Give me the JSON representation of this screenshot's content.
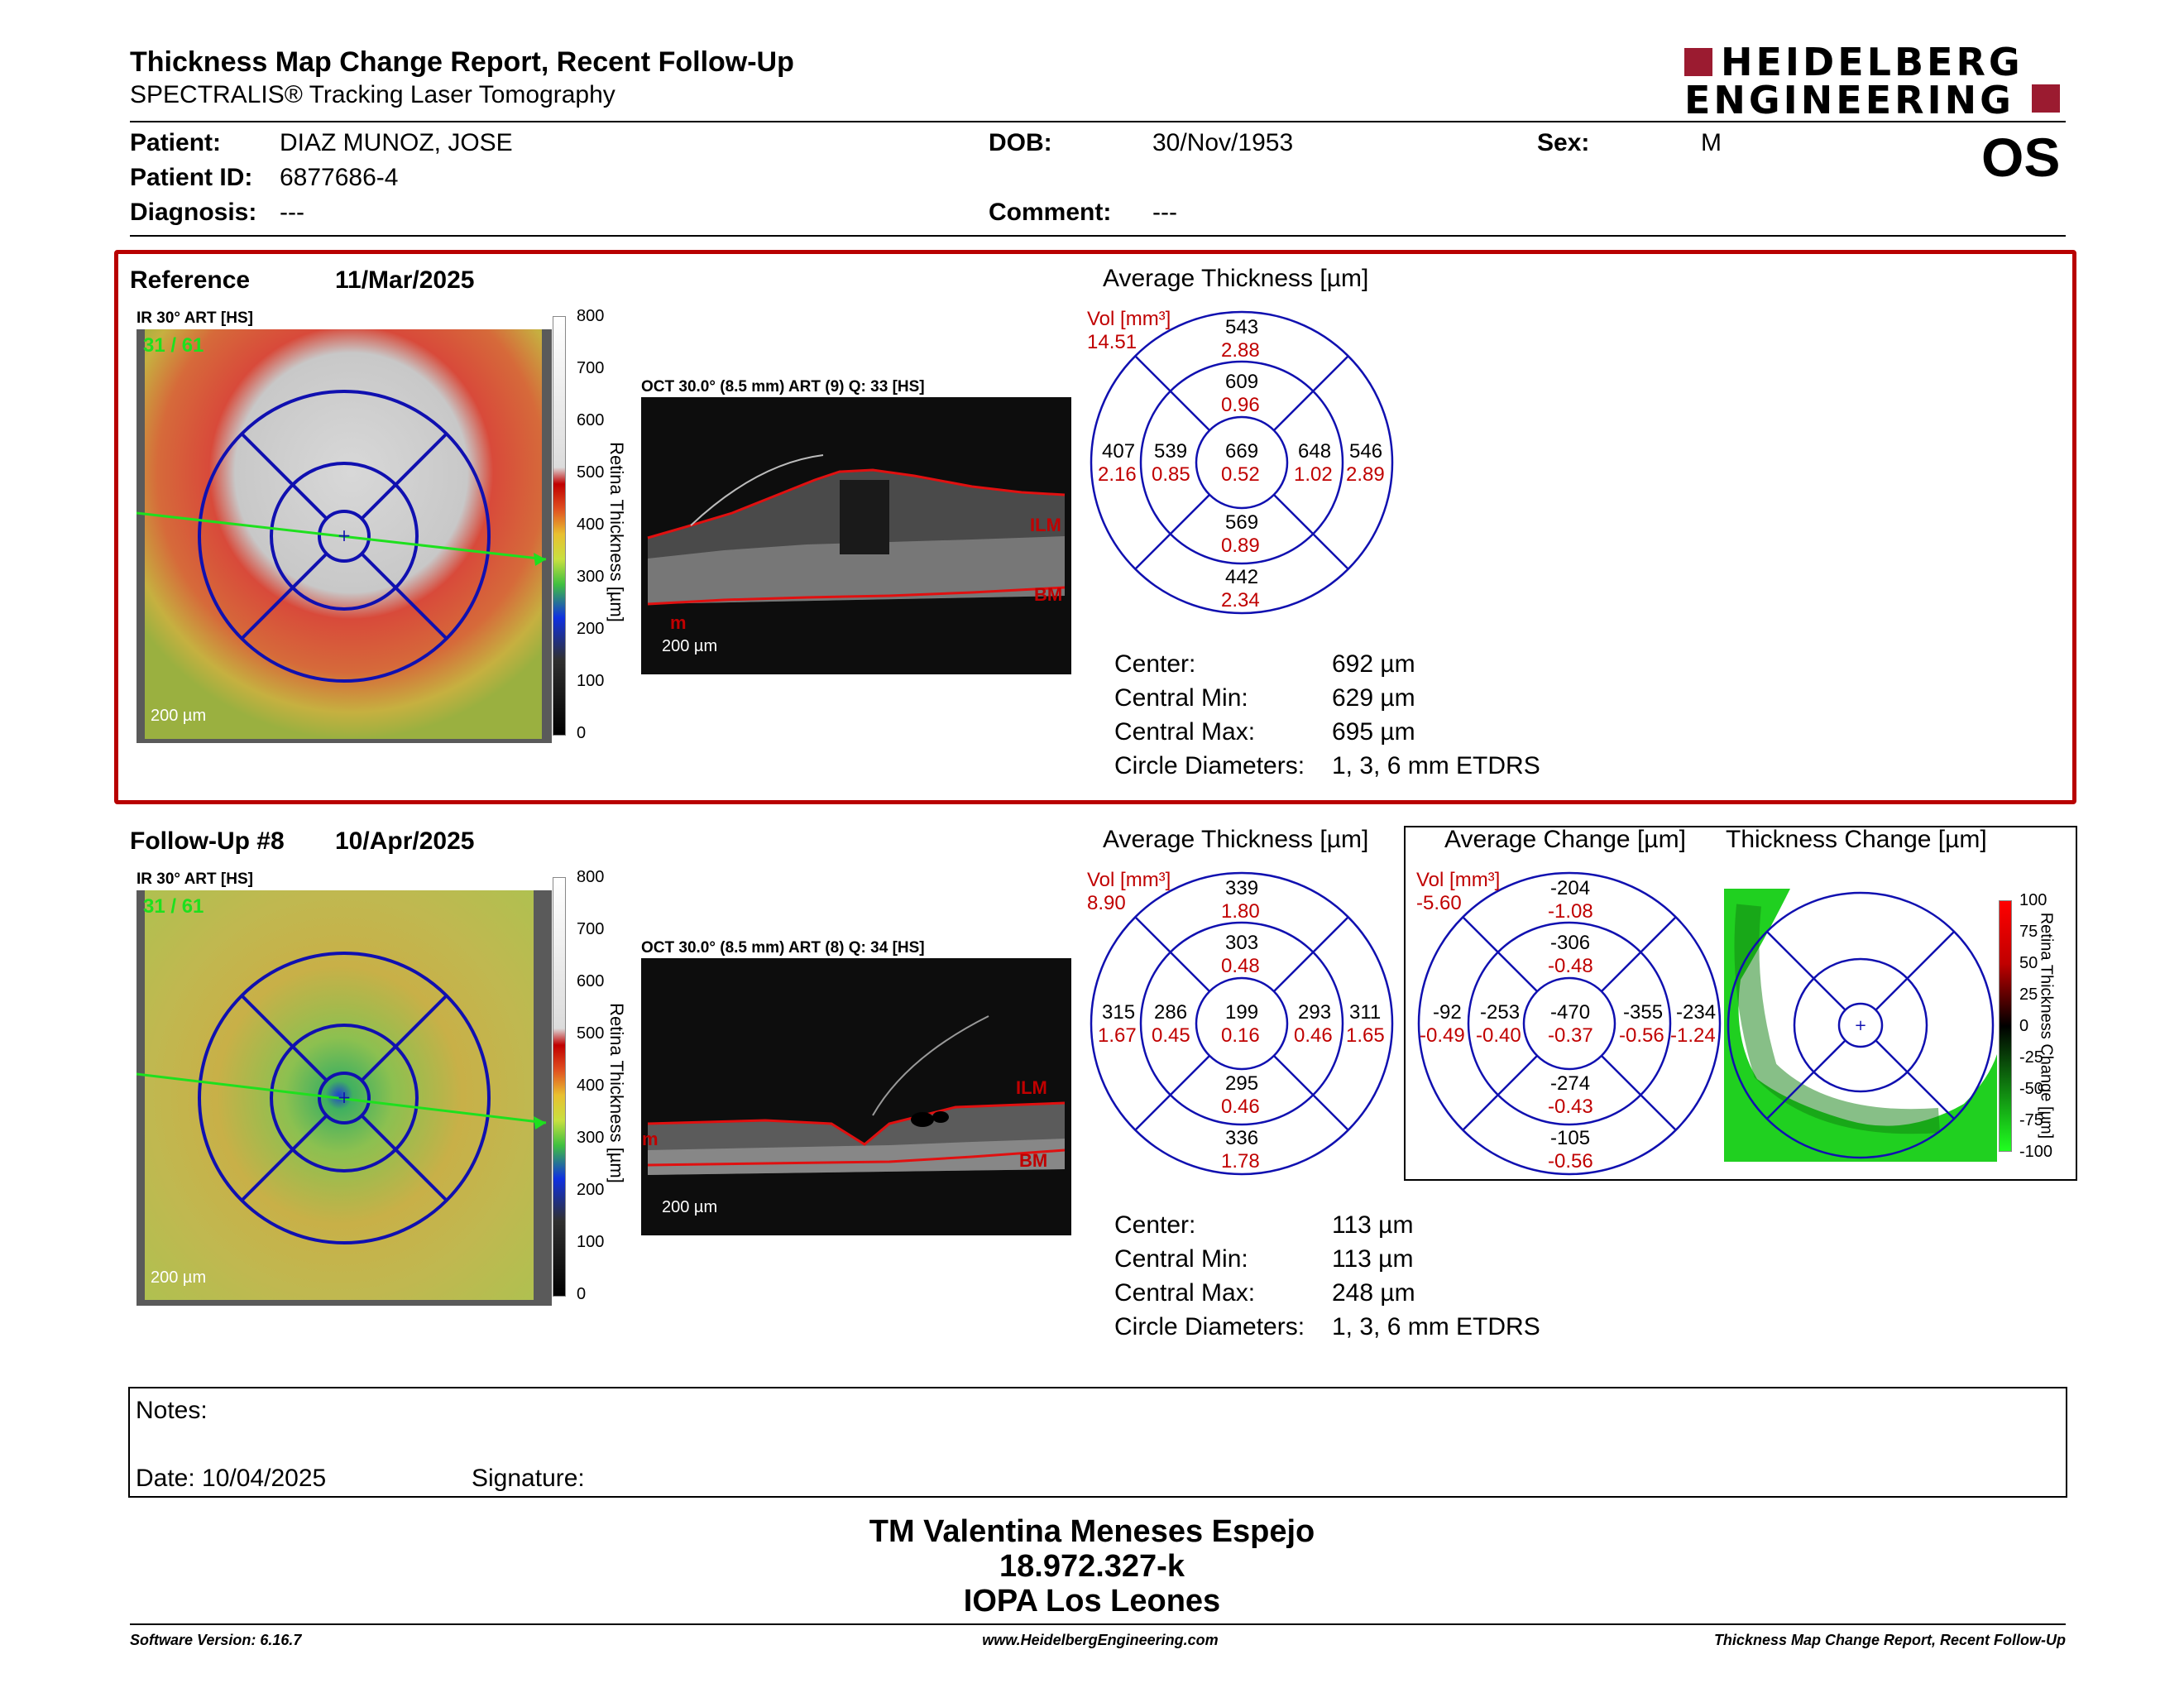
{
  "header": {
    "title": "Thickness Map Change Report, Recent Follow-Up",
    "subtitle": "SPECTRALIS® Tracking Laser Tomography",
    "logo_line1": "HEIDELBERG",
    "logo_line2": "ENGINEERING",
    "eye": "OS"
  },
  "patient": {
    "patient_label": "Patient:",
    "patient": "DIAZ MUNOZ, JOSE",
    "id_label": "Patient ID:",
    "id": "6877686-4",
    "diag_label": "Diagnosis:",
    "diag": "---",
    "dob_label": "DOB:",
    "dob": "30/Nov/1953",
    "comment_label": "Comment:",
    "comment": "---",
    "sex_label": "Sex:",
    "sex": "M"
  },
  "reference": {
    "label": "Reference",
    "date": "11/Mar/2025",
    "ir_label": "IR 30° ART [HS]",
    "ir_counter": "31 / 61",
    "scale": "200 µm",
    "oct_label": "OCT 30.0° (8.5 mm) ART (9) Q: 33 [HS]",
    "oct_scale": "200 µm",
    "ilm": "ILM",
    "bm": "BM",
    "m": "m",
    "avg_title": "Average Thickness [µm]",
    "vol_label": "Vol [mm³]",
    "vol": "14.51",
    "etdrs": {
      "top": [
        "543",
        "2.88"
      ],
      "inner_top": [
        "609",
        "0.96"
      ],
      "outer_left": [
        "407",
        "2.16"
      ],
      "inner_left": [
        "539",
        "0.85"
      ],
      "center": [
        "669",
        "0.52"
      ],
      "inner_right": [
        "648",
        "1.02"
      ],
      "outer_right": [
        "546",
        "2.89"
      ],
      "inner_bottom": [
        "569",
        "0.89"
      ],
      "bottom": [
        "442",
        "2.34"
      ]
    },
    "stats": [
      {
        "label": "Center:",
        "value": "692 µm"
      },
      {
        "label": "Central Min:",
        "value": "629 µm"
      },
      {
        "label": "Central Max:",
        "value": "695 µm"
      },
      {
        "label": "Circle Diameters:",
        "value": "1, 3, 6 mm ETDRS"
      }
    ]
  },
  "followup": {
    "label": "Follow-Up #8",
    "date": "10/Apr/2025",
    "ir_label": "IR 30° ART [HS]",
    "ir_counter": "31 / 61",
    "scale": "200 µm",
    "oct_label": "OCT 30.0° (8.5 mm) ART (8) Q: 34 [HS]",
    "oct_scale": "200 µm",
    "ilm": "ILM",
    "bm": "BM",
    "m": "m",
    "avg_title": "Average Thickness [µm]",
    "vol_label": "Vol [mm³]",
    "vol": "8.90",
    "etdrs": {
      "top": [
        "339",
        "1.80"
      ],
      "inner_top": [
        "303",
        "0.48"
      ],
      "outer_left": [
        "315",
        "1.67"
      ],
      "inner_left": [
        "286",
        "0.45"
      ],
      "center": [
        "199",
        "0.16"
      ],
      "inner_right": [
        "293",
        "0.46"
      ],
      "outer_right": [
        "311",
        "1.65"
      ],
      "inner_bottom": [
        "295",
        "0.46"
      ],
      "bottom": [
        "336",
        "1.78"
      ]
    },
    "change_title": "Average Change [µm]",
    "change_vol_label": "Vol [mm³]",
    "change_vol": "-5.60",
    "change": {
      "top": [
        "-204",
        "-1.08"
      ],
      "inner_top": [
        "-306",
        "-0.48"
      ],
      "outer_left": [
        "-92",
        "-0.49"
      ],
      "inner_left": [
        "-253",
        "-0.40"
      ],
      "center": [
        "-470",
        "-0.37"
      ],
      "inner_right": [
        "-355",
        "-0.56"
      ],
      "outer_right": [
        "-234",
        "-1.24"
      ],
      "inner_bottom": [
        "-274",
        "-0.43"
      ],
      "bottom": [
        "-105",
        "-0.56"
      ]
    },
    "tc_title": "Thickness Change [µm]",
    "stats": [
      {
        "label": "Center:",
        "value": "113 µm"
      },
      {
        "label": "Central Min:",
        "value": "113 µm"
      },
      {
        "label": "Central Max:",
        "value": "248 µm"
      },
      {
        "label": "Circle Diameters:",
        "value": "1, 3, 6 mm ETDRS"
      }
    ]
  },
  "colorbar": {
    "ticks": [
      "800",
      "700",
      "600",
      "500",
      "400",
      "300",
      "200",
      "100",
      "0"
    ],
    "label": "Retina Thickness [µm]"
  },
  "change_colorbar": {
    "ticks": [
      "100",
      "75",
      "50",
      "25",
      "0",
      "-25",
      "-50",
      "-75",
      "-100"
    ],
    "label": "Retina Thickness Change [µm]"
  },
  "notes": {
    "notes_label": "Notes:",
    "date_label": "Date: 10/04/2025",
    "signature_label": "Signature:"
  },
  "signature_block": {
    "line1": "TM Valentina Meneses Espejo",
    "line2": "18.972.327-k",
    "line3": "IOPA Los Leones"
  },
  "footer": {
    "left": "Software Version: 6.16.7",
    "center": "www.HeidelbergEngineering.com",
    "right": "Thickness Map Change Report, Recent Follow-Up"
  },
  "colors": {
    "accent_red": "#b80000",
    "grid_blue": "#1010b0",
    "value_red": "#c00000"
  }
}
